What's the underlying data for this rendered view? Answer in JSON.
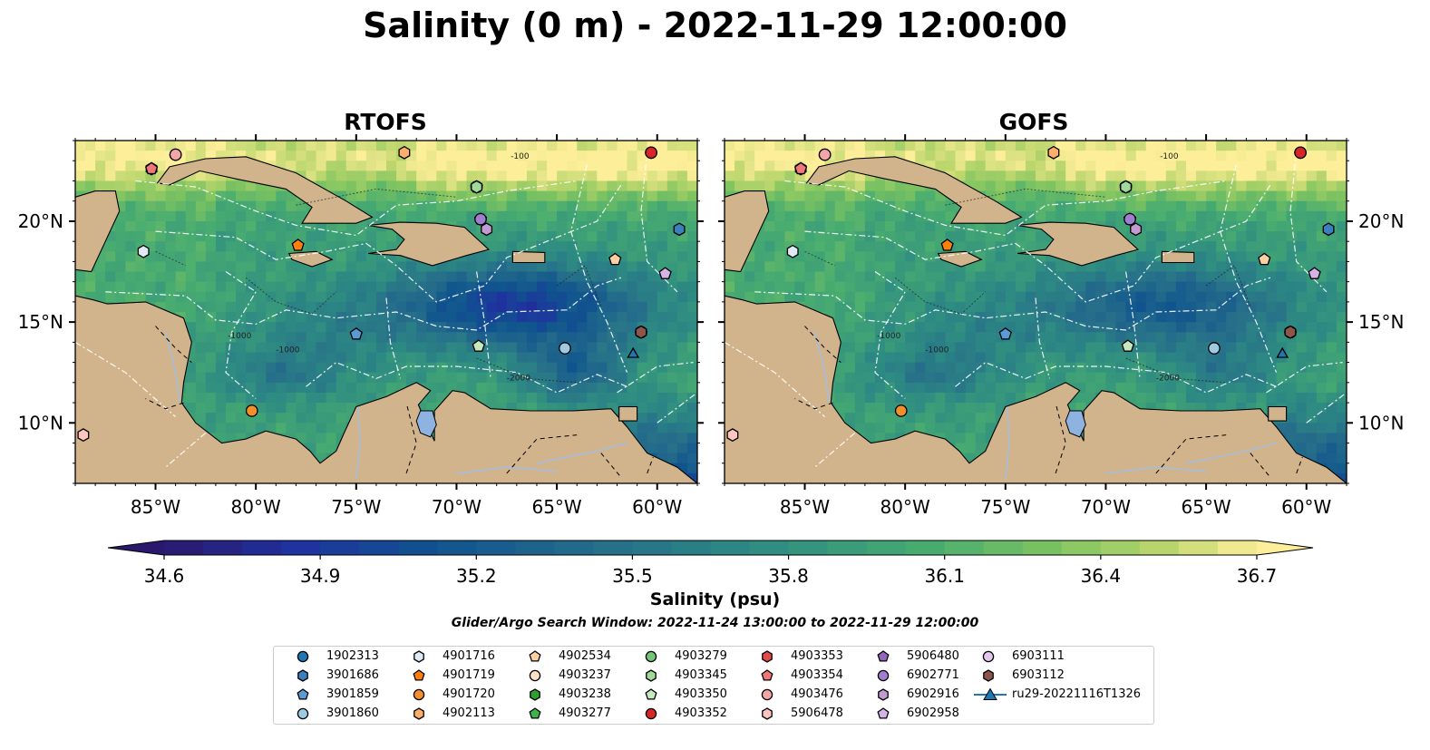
{
  "title": "Salinity (0 m) - 2022-11-29 12:00:00",
  "panels": [
    {
      "title": "RTOFS"
    },
    {
      "title": "GOFS"
    }
  ],
  "chart_data": {
    "type": "heatmap",
    "title": "Salinity (0 m) - 2022-11-29 12:00:00",
    "xlim": [
      -89,
      -58
    ],
    "ylim": [
      7,
      24
    ],
    "x_ticks": [
      -85,
      -80,
      -75,
      -70,
      -65,
      -60
    ],
    "x_tick_labels": [
      "85°W",
      "80°W",
      "75°W",
      "70°W",
      "65°W",
      "60°W"
    ],
    "y_ticks": [
      10,
      15,
      20
    ],
    "y_tick_labels": [
      "10°N",
      "15°N",
      "20°N"
    ],
    "colorbar": {
      "label": "Salinity (psu)",
      "min": 34.6,
      "max": 36.7,
      "step": 0.075,
      "ticks": [
        34.6,
        34.9,
        35.2,
        35.5,
        35.8,
        36.1,
        36.4,
        36.7
      ],
      "tick_labels": [
        "34.6",
        "34.9",
        "35.2",
        "35.5",
        "35.8",
        "36.1",
        "36.4",
        "36.7"
      ],
      "extend": "both",
      "colormap": "haline"
    },
    "contour_labels": [
      "-100",
      "-1000",
      "-2000"
    ],
    "search_window": "Glider/Argo Search Window: 2022-11-24 13:00:00 to 2022-11-29 12:00:00",
    "markers": [
      {
        "id": "1902313",
        "shape": "circle",
        "color": "#1f77b4",
        "lon": -60.3,
        "lat": 23.4
      },
      {
        "id": "3901686",
        "shape": "hexagon",
        "color": "#3c7fbf",
        "lon": -58.9,
        "lat": 19.6
      },
      {
        "id": "3901859",
        "shape": "pentagon",
        "color": "#5b9bd5",
        "lon": -75.0,
        "lat": 14.4
      },
      {
        "id": "3901860",
        "shape": "circle",
        "color": "#9ecae1",
        "lon": -64.6,
        "lat": 13.7
      },
      {
        "id": "4901716",
        "shape": "hexagon",
        "color": "#deebf7",
        "lon": -85.6,
        "lat": 18.5
      },
      {
        "id": "4901719",
        "shape": "pentagon",
        "color": "#ff7f0e",
        "lon": -77.9,
        "lat": 18.8
      },
      {
        "id": "4901720",
        "shape": "circle",
        "color": "#f28e2b",
        "lon": -80.2,
        "lat": 10.6
      },
      {
        "id": "4902113",
        "shape": "hexagon",
        "color": "#fdae6b",
        "lon": -72.6,
        "lat": 23.4
      },
      {
        "id": "4902534",
        "shape": "pentagon",
        "color": "#fdd0a2",
        "lon": -62.1,
        "lat": 18.1
      },
      {
        "id": "4903237",
        "shape": "circle",
        "color": "#fde0c5",
        "lon": -84.0,
        "lat": 23.3
      },
      {
        "id": "4903238",
        "shape": "hexagon",
        "color": "#2ca02c",
        "lon": -69.0,
        "lat": 21.7
      },
      {
        "id": "4903277",
        "shape": "pentagon",
        "color": "#3cb44b",
        "lon": -69.0,
        "lat": 21.7
      },
      {
        "id": "4903279",
        "shape": "circle",
        "color": "#74c476",
        "lon": -69.0,
        "lat": 21.7
      },
      {
        "id": "4903345",
        "shape": "hexagon",
        "color": "#a1d99b",
        "lon": -69.0,
        "lat": 21.7
      },
      {
        "id": "4903350",
        "shape": "pentagon",
        "color": "#c7e9c0",
        "lon": -68.9,
        "lat": 13.8
      },
      {
        "id": "4903352",
        "shape": "circle",
        "color": "#d62728",
        "lon": -60.3,
        "lat": 23.4
      },
      {
        "id": "4903353",
        "shape": "hexagon",
        "color": "#e34a4a",
        "lon": -85.2,
        "lat": 22.6
      },
      {
        "id": "4903354",
        "shape": "pentagon",
        "color": "#f07878",
        "lon": -85.2,
        "lat": 22.6
      },
      {
        "id": "4903476",
        "shape": "circle",
        "color": "#f4a6a6",
        "lon": -84.0,
        "lat": 23.3
      },
      {
        "id": "5906478",
        "shape": "hexagon",
        "color": "#fcc5c0",
        "lon": -88.6,
        "lat": 9.4
      },
      {
        "id": "5906480",
        "shape": "pentagon",
        "color": "#9467bd",
        "lon": -68.8,
        "lat": 20.1
      },
      {
        "id": "6902771",
        "shape": "circle",
        "color": "#a27ed0",
        "lon": -68.8,
        "lat": 20.1
      },
      {
        "id": "6902916",
        "shape": "hexagon",
        "color": "#c39bd3",
        "lon": -68.5,
        "lat": 19.6
      },
      {
        "id": "6902958",
        "shape": "pentagon",
        "color": "#d6b3e6",
        "lon": -59.6,
        "lat": 17.4
      },
      {
        "id": "6903111",
        "shape": "circle",
        "color": "#e5c6f0",
        "lon": -60.8,
        "lat": 14.5
      },
      {
        "id": "6903112",
        "shape": "hexagon",
        "color": "#8c564b",
        "lon": -60.8,
        "lat": 14.5
      },
      {
        "id": "ru29-20221116T1326",
        "shape": "triangle-line",
        "color": "#1f77b4",
        "lon": -61.2,
        "lat": 13.4
      }
    ]
  },
  "legend": {
    "items": [
      {
        "label": "1902313",
        "shape": "circle",
        "color": "#1f77b4"
      },
      {
        "label": "3901686",
        "shape": "hexagon",
        "color": "#3c7fbf"
      },
      {
        "label": "3901859",
        "shape": "pentagon",
        "color": "#5b9bd5"
      },
      {
        "label": "3901860",
        "shape": "circle",
        "color": "#9ecae1"
      },
      {
        "label": "4901716",
        "shape": "hexagon",
        "color": "#deebf7"
      },
      {
        "label": "4901719",
        "shape": "pentagon",
        "color": "#ff7f0e"
      },
      {
        "label": "4901720",
        "shape": "circle",
        "color": "#f28e2b"
      },
      {
        "label": "4902113",
        "shape": "hexagon",
        "color": "#fdae6b"
      },
      {
        "label": "4902534",
        "shape": "pentagon",
        "color": "#fdd0a2"
      },
      {
        "label": "4903237",
        "shape": "circle",
        "color": "#fde0c5"
      },
      {
        "label": "4903238",
        "shape": "hexagon",
        "color": "#2ca02c"
      },
      {
        "label": "4903277",
        "shape": "pentagon",
        "color": "#3cb44b"
      },
      {
        "label": "4903279",
        "shape": "circle",
        "color": "#74c476"
      },
      {
        "label": "4903345",
        "shape": "hexagon",
        "color": "#a1d99b"
      },
      {
        "label": "4903350",
        "shape": "pentagon",
        "color": "#c7e9c0"
      },
      {
        "label": "4903352",
        "shape": "circle",
        "color": "#d62728"
      },
      {
        "label": "4903353",
        "shape": "hexagon",
        "color": "#e34a4a"
      },
      {
        "label": "4903354",
        "shape": "pentagon",
        "color": "#f07878"
      },
      {
        "label": "4903476",
        "shape": "circle",
        "color": "#f4a6a6"
      },
      {
        "label": "5906478",
        "shape": "hexagon",
        "color": "#fcc5c0"
      },
      {
        "label": "5906480",
        "shape": "pentagon",
        "color": "#9467bd"
      },
      {
        "label": "6902771",
        "shape": "circle",
        "color": "#a27ed0"
      },
      {
        "label": "6902916",
        "shape": "hexagon",
        "color": "#c39bd3"
      },
      {
        "label": "6902958",
        "shape": "pentagon",
        "color": "#d6b3e6"
      },
      {
        "label": "6903111",
        "shape": "circle",
        "color": "#e5c6f0"
      },
      {
        "label": "6903112",
        "shape": "hexagon",
        "color": "#8c564b"
      },
      {
        "label": "ru29-20221116T1326",
        "shape": "triangle-line",
        "color": "#1f77b4"
      }
    ]
  },
  "colors": {
    "land": "#d2b48c",
    "deep_pacific": "#2a186c",
    "river": "#a6bddb",
    "lake": "#8fb3e0"
  }
}
